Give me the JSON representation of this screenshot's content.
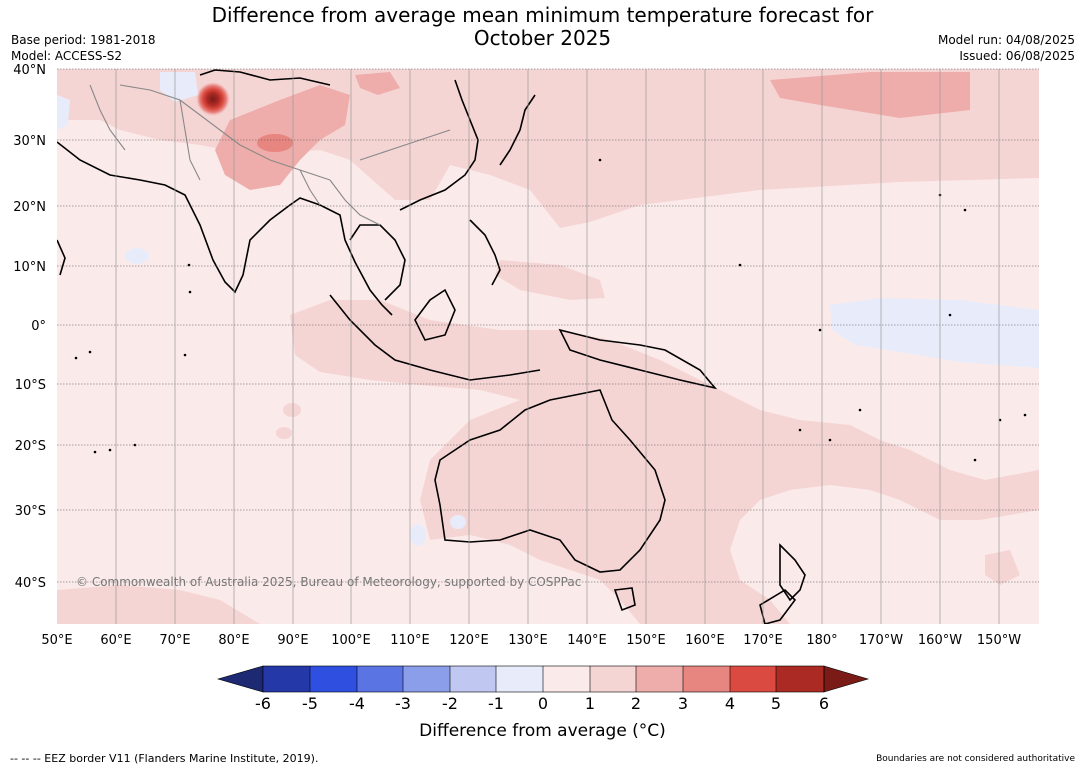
{
  "title": {
    "line1": "Difference from average mean minimum temperature forecast for",
    "line2": "October 2025"
  },
  "meta": {
    "base_period": "Base period: 1981-2018",
    "model": "Model: ACCESS-S2",
    "model_run": "Model run: 04/08/2025",
    "issued": "Issued: 06/08/2025"
  },
  "map": {
    "lat_labels": [
      "40°N",
      "30°N",
      "20°N",
      "10°N",
      "0°",
      "10°S",
      "20°S",
      "30°S",
      "40°S"
    ],
    "lon_labels": [
      "50°E",
      "60°E",
      "70°E",
      "80°E",
      "90°E",
      "100°E",
      "110°E",
      "120°E",
      "130°E",
      "140°E",
      "150°E",
      "160°E",
      "170°E",
      "180°",
      "170°W",
      "160°W",
      "150°W"
    ],
    "copyright": "© Commonwealth of Australia 2025, Bureau of Meteorology, supported by COSPPac",
    "colors": {
      "land": "#000000",
      "c_m1_0": "#e8ecfa",
      "c_0_1": "#fbeaea",
      "c_1_2": "#f5d5d4",
      "c_2_3": "#eeadaa",
      "c_3_4": "#e78580",
      "c_4_5": "#db4a40",
      "c_5_6": "#ab2a23"
    }
  },
  "colorbar": {
    "ticks": [
      "-6",
      "-5",
      "-4",
      "-3",
      "-2",
      "-1",
      "0",
      "1",
      "2",
      "3",
      "4",
      "5",
      "6"
    ],
    "label": "Difference from average (°C)",
    "colors": [
      "#1d2a73",
      "#2438a8",
      "#2f4fe0",
      "#5a74e4",
      "#8a9ee9",
      "#c0c8f2",
      "#e8ecfa",
      "#fbeaea",
      "#f5d5d4",
      "#eeadaa",
      "#e78580",
      "#db4a40",
      "#ab2a23",
      "#7a1b17"
    ]
  },
  "footer": {
    "eez": "--  --  -- EEZ border V11 (Flanders Marine Institute, 2019).",
    "boundaries": "Boundaries are not considered authoritative"
  }
}
